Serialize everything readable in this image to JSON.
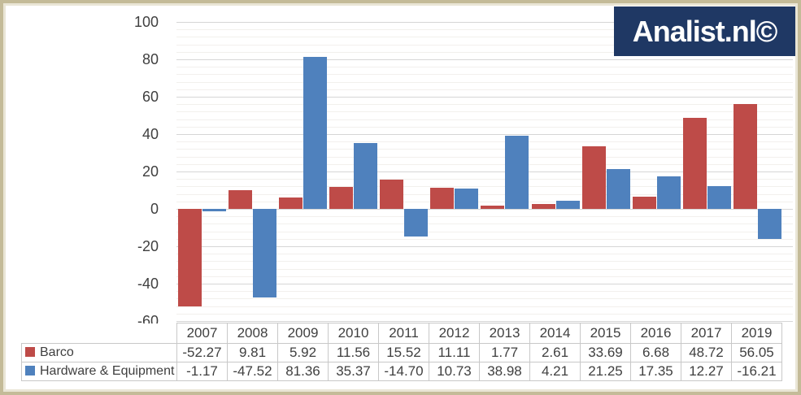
{
  "logo": {
    "text": "Analist.nl©",
    "bg_color": "#1F3864",
    "text_color": "#FFFFFF"
  },
  "chart_data": {
    "type": "bar",
    "title": "",
    "categories": [
      "2007",
      "2008",
      "2009",
      "2010",
      "2011",
      "2012",
      "2013",
      "2014",
      "2015",
      "2016",
      "2017",
      "2019"
    ],
    "series": [
      {
        "name": "Barco",
        "color": "#BE4B48",
        "values": [
          -52.27,
          9.81,
          5.92,
          11.56,
          15.52,
          11.11,
          1.77,
          2.61,
          33.69,
          6.68,
          48.72,
          56.05
        ]
      },
      {
        "name": "Hardware & Equipment",
        "color": "#4F81BD",
        "values": [
          -1.17,
          -47.52,
          81.36,
          35.37,
          -14.7,
          10.73,
          38.98,
          4.21,
          21.25,
          17.35,
          12.27,
          -16.21
        ]
      }
    ],
    "ylim": [
      -60,
      100
    ],
    "y_major_unit": 20,
    "y_minor_unit": 4,
    "y_tick_labels": [
      "100",
      "80",
      "60",
      "40",
      "20",
      "0",
      "-20",
      "-40",
      "-60"
    ],
    "grid": true,
    "legend_position": "table-left",
    "value_decimals": 2
  },
  "colors": {
    "frame_outer": "#C4BB98",
    "frame_inner": "#EAE6D6",
    "background": "#FFFFFF",
    "major_gridline": "#D6D6D6",
    "minor_gridline": "#F2F0ED",
    "table_border": "#C8C8C8",
    "text": "#3F3F3F"
  }
}
